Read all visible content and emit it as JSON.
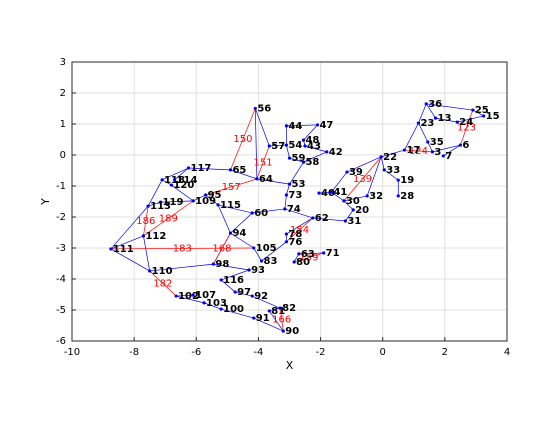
{
  "chart_data": {
    "type": "network",
    "xlabel": "X",
    "ylabel": "Y",
    "xlim": [
      -10,
      4
    ],
    "ylim": [
      -6,
      3
    ],
    "xticks": [
      -10,
      -8,
      -6,
      -4,
      -2,
      0,
      2,
      4
    ],
    "yticks": [
      -6,
      -5,
      -4,
      -3,
      -2,
      -1,
      0,
      1,
      2,
      3
    ],
    "grid": true,
    "edge_color": "#0000ee",
    "labeled_edge_color": "#ff0000",
    "node_label_color": "#000000",
    "nodes": [
      {
        "label": "56",
        "x": -4.1,
        "y": 1.5
      },
      {
        "label": "44",
        "x": -3.1,
        "y": 0.94
      },
      {
        "label": "47",
        "x": -2.1,
        "y": 0.97
      },
      {
        "label": "57",
        "x": -3.65,
        "y": 0.29
      },
      {
        "label": "54",
        "x": -3.1,
        "y": 0.32
      },
      {
        "label": "48",
        "x": -2.55,
        "y": 0.48
      },
      {
        "label": "43",
        "x": -2.5,
        "y": 0.29
      },
      {
        "label": "42",
        "x": -1.8,
        "y": 0.1
      },
      {
        "label": "59",
        "x": -3.0,
        "y": -0.1
      },
      {
        "label": "58",
        "x": -2.55,
        "y": -0.23
      },
      {
        "label": "65",
        "x": -4.9,
        "y": -0.48
      },
      {
        "label": "64",
        "x": -4.05,
        "y": -0.77
      },
      {
        "label": "53",
        "x": -3.0,
        "y": -0.94
      },
      {
        "label": "117",
        "x": -6.25,
        "y": -0.42
      },
      {
        "label": "118",
        "x": -7.1,
        "y": -0.8
      },
      {
        "label": "114",
        "x": -6.7,
        "y": -0.8
      },
      {
        "label": "120",
        "x": -6.8,
        "y": -0.97
      },
      {
        "label": "73",
        "x": -3.1,
        "y": -1.29
      },
      {
        "label": "39",
        "x": -1.15,
        "y": -0.55
      },
      {
        "label": "40",
        "x": -2.05,
        "y": -1.23
      },
      {
        "label": "41",
        "x": -1.65,
        "y": -1.2
      },
      {
        "label": "32",
        "x": -0.5,
        "y": -1.32
      },
      {
        "label": "30",
        "x": -1.25,
        "y": -1.48
      },
      {
        "label": "20",
        "x": -0.95,
        "y": -1.77
      },
      {
        "label": "62",
        "x": -2.25,
        "y": -2.03
      },
      {
        "label": "31",
        "x": -1.2,
        "y": -2.13
      },
      {
        "label": "74",
        "x": -3.15,
        "y": -1.74
      },
      {
        "label": "60",
        "x": -4.2,
        "y": -1.87
      },
      {
        "label": "95",
        "x": -5.7,
        "y": -1.29
      },
      {
        "label": "109",
        "x": -6.1,
        "y": -1.48
      },
      {
        "label": "115",
        "x": -5.3,
        "y": -1.61
      },
      {
        "label": "119",
        "x": -7.15,
        "y": -1.52
      },
      {
        "label": "113",
        "x": -7.55,
        "y": -1.65
      },
      {
        "label": "94",
        "x": -4.9,
        "y": -2.52
      },
      {
        "label": "112",
        "x": -7.7,
        "y": -2.61
      },
      {
        "label": "111",
        "x": -8.75,
        "y": -3.03
      },
      {
        "label": "110",
        "x": -7.5,
        "y": -3.74
      },
      {
        "label": "105",
        "x": -4.15,
        "y": -3.0
      },
      {
        "label": "83",
        "x": -3.9,
        "y": -3.42
      },
      {
        "label": "76",
        "x": -3.1,
        "y": -2.8
      },
      {
        "label": "78",
        "x": -3.1,
        "y": -2.55
      },
      {
        "label": "80",
        "x": -2.85,
        "y": -3.45
      },
      {
        "label": "63",
        "x": -2.7,
        "y": -3.19
      },
      {
        "label": "71",
        "x": -1.9,
        "y": -3.16
      },
      {
        "label": "98",
        "x": -5.45,
        "y": -3.52
      },
      {
        "label": "93",
        "x": -4.3,
        "y": -3.71
      },
      {
        "label": "116",
        "x": -5.2,
        "y": -4.03
      },
      {
        "label": "97",
        "x": -4.75,
        "y": -4.42
      },
      {
        "label": "107",
        "x": -6.1,
        "y": -4.52
      },
      {
        "label": "102",
        "x": -6.65,
        "y": -4.55
      },
      {
        "label": "103",
        "x": -5.75,
        "y": -4.77
      },
      {
        "label": "92",
        "x": -4.2,
        "y": -4.55
      },
      {
        "label": "100",
        "x": -5.2,
        "y": -4.97
      },
      {
        "label": "82",
        "x": -3.3,
        "y": -4.94
      },
      {
        "label": "81",
        "x": -3.65,
        "y": -5.03
      },
      {
        "label": "91",
        "x": -4.15,
        "y": -5.26
      },
      {
        "label": "90",
        "x": -3.2,
        "y": -5.68
      },
      {
        "label": "36",
        "x": 1.4,
        "y": 1.65
      },
      {
        "label": "25",
        "x": 2.9,
        "y": 1.45
      },
      {
        "label": "15",
        "x": 3.25,
        "y": 1.26
      },
      {
        "label": "13",
        "x": 1.7,
        "y": 1.19
      },
      {
        "label": "23",
        "x": 1.15,
        "y": 1.03
      },
      {
        "label": "24",
        "x": 2.4,
        "y": 1.06
      },
      {
        "label": "17",
        "x": 0.7,
        "y": 0.16
      },
      {
        "label": "22",
        "x": -0.05,
        "y": -0.06
      },
      {
        "label": "33",
        "x": 0.05,
        "y": -0.48
      },
      {
        "label": "19",
        "x": 0.5,
        "y": -0.81
      },
      {
        "label": "28",
        "x": 0.5,
        "y": -1.32
      },
      {
        "label": "7",
        "x": 1.95,
        "y": -0.03
      },
      {
        "label": "6",
        "x": 2.5,
        "y": 0.32
      },
      {
        "label": "3",
        "x": 1.6,
        "y": 0.1
      },
      {
        "label": "35",
        "x": 1.45,
        "y": 0.42
      }
    ],
    "edges": [
      [
        0,
        3
      ],
      [
        0,
        11
      ],
      [
        1,
        4
      ],
      [
        2,
        5
      ],
      [
        2,
        1
      ],
      [
        3,
        4
      ],
      [
        4,
        8
      ],
      [
        5,
        6
      ],
      [
        6,
        7
      ],
      [
        7,
        9
      ],
      [
        8,
        9
      ],
      [
        9,
        12
      ],
      [
        10,
        11
      ],
      [
        10,
        13
      ],
      [
        11,
        12
      ],
      [
        12,
        17
      ],
      [
        13,
        14
      ],
      [
        13,
        15
      ],
      [
        14,
        16
      ],
      [
        16,
        29
      ],
      [
        17,
        26
      ],
      [
        18,
        20
      ],
      [
        18,
        64
      ],
      [
        19,
        20
      ],
      [
        20,
        22
      ],
      [
        21,
        22
      ],
      [
        21,
        64
      ],
      [
        22,
        23
      ],
      [
        23,
        25
      ],
      [
        24,
        25
      ],
      [
        24,
        26
      ],
      [
        26,
        27
      ],
      [
        27,
        30
      ],
      [
        28,
        29
      ],
      [
        28,
        30
      ],
      [
        29,
        31
      ],
      [
        31,
        32
      ],
      [
        32,
        35
      ],
      [
        34,
        35
      ],
      [
        35,
        36
      ],
      [
        36,
        44
      ],
      [
        33,
        37
      ],
      [
        37,
        38
      ],
      [
        38,
        39
      ],
      [
        39,
        40
      ],
      [
        40,
        24
      ],
      [
        41,
        42
      ],
      [
        42,
        43
      ],
      [
        44,
        45
      ],
      [
        45,
        46
      ],
      [
        46,
        47
      ],
      [
        47,
        51
      ],
      [
        48,
        49
      ],
      [
        49,
        50
      ],
      [
        50,
        52
      ],
      [
        52,
        55
      ],
      [
        55,
        56
      ],
      [
        51,
        53
      ],
      [
        53,
        54
      ],
      [
        54,
        56
      ],
      [
        57,
        58
      ],
      [
        58,
        59
      ],
      [
        57,
        60
      ],
      [
        60,
        62
      ],
      [
        61,
        63
      ],
      [
        63,
        64
      ],
      [
        64,
        65
      ],
      [
        65,
        66
      ],
      [
        66,
        67
      ],
      [
        68,
        69
      ],
      [
        69,
        70
      ],
      [
        70,
        71
      ],
      [
        71,
        61
      ],
      [
        62,
        59
      ],
      [
        61,
        57
      ],
      [
        33,
        44
      ],
      [
        30,
        33
      ],
      [
        14,
        32
      ],
      [
        36,
        34
      ],
      [
        27,
        33
      ]
    ],
    "labeled_edges": [
      {
        "from": 0,
        "to": 10,
        "label": "150"
      },
      {
        "from": 3,
        "to": 11,
        "label": "151"
      },
      {
        "from": 32,
        "to": 34,
        "label": "186"
      },
      {
        "from": 29,
        "to": 34,
        "label": "189"
      },
      {
        "from": 35,
        "to": 37,
        "label": "183"
      },
      {
        "from": 36,
        "to": 49,
        "label": "182"
      },
      {
        "from": 53,
        "to": 56,
        "label": "166"
      },
      {
        "from": 41,
        "to": 43,
        "label": "159"
      },
      {
        "from": 24,
        "to": 39,
        "label": "154"
      },
      {
        "from": 64,
        "to": 22,
        "label": "139"
      },
      {
        "from": 69,
        "to": 58,
        "label": "123"
      },
      {
        "from": 63,
        "to": 70,
        "label": "124"
      },
      {
        "from": 28,
        "to": 11,
        "label": "157"
      },
      {
        "from": 33,
        "to": 44,
        "label": "168"
      }
    ]
  }
}
